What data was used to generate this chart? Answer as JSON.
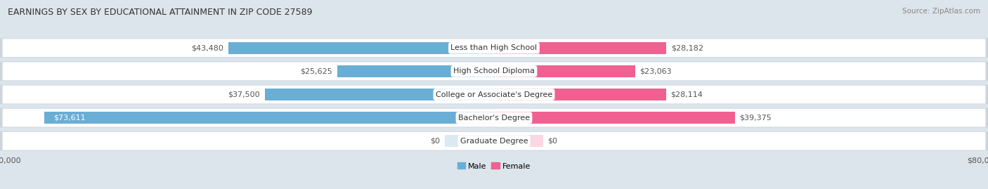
{
  "title": "EARNINGS BY SEX BY EDUCATIONAL ATTAINMENT IN ZIP CODE 27589",
  "source": "Source: ZipAtlas.com",
  "categories": [
    "Less than High School",
    "High School Diploma",
    "College or Associate's Degree",
    "Bachelor's Degree",
    "Graduate Degree"
  ],
  "male_values": [
    43480,
    25625,
    37500,
    73611,
    0
  ],
  "female_values": [
    28182,
    23063,
    28114,
    39375,
    0
  ],
  "male_labels": [
    "$43,480",
    "$25,625",
    "$37,500",
    "$73,611",
    "$0"
  ],
  "female_labels": [
    "$28,182",
    "$23,063",
    "$28,114",
    "$39,375",
    "$0"
  ],
  "male_colors": [
    "#6aaed6",
    "#6aaed6",
    "#6aaed6",
    "#6aaed6",
    "#b8d4e8"
  ],
  "female_colors": [
    "#f06090",
    "#f06090",
    "#f06090",
    "#f06090",
    "#f4b0c8"
  ],
  "row_bg_color": "#ffffff",
  "row_border_color": "#ccd4dc",
  "fig_bg_color": "#dce4ec",
  "max_value": 80000,
  "male_legend": "Male",
  "female_legend": "Female",
  "title_fontsize": 9,
  "source_fontsize": 7.5,
  "bar_label_fontsize": 8,
  "cat_label_fontsize": 8,
  "legend_fontsize": 8
}
